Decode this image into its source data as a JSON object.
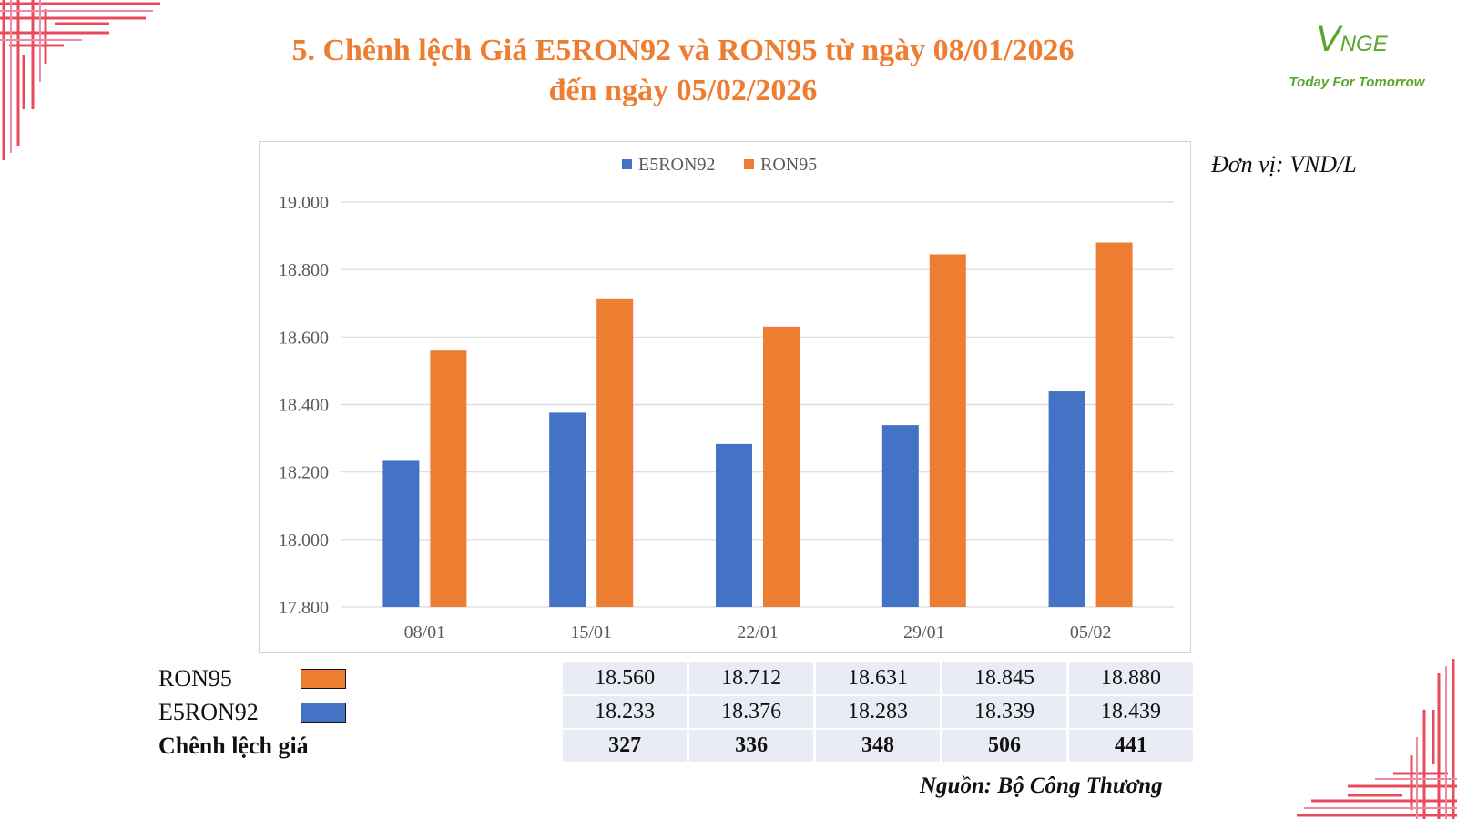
{
  "title_line1": "5. Chênh lệch Giá E5RON92 và RON95 từ ngày 08/01/2026",
  "title_line2": "đến ngày 05/02/2026",
  "logo": {
    "mark_v": "V",
    "mark_rest": "NGE",
    "tagline": "Today For Tomorrow"
  },
  "unit_label": "Đơn vị: VND/L",
  "source_label": "Nguồn: Bộ Công Thương",
  "colors": {
    "e5ron92": "#4472c4",
    "ron95": "#ed7d31",
    "title": "#ed7d31",
    "accent_frame": "#e84b5c",
    "logo": "#5aa62c"
  },
  "chart_data": {
    "type": "bar",
    "categories": [
      "08/01",
      "15/01",
      "22/01",
      "29/01",
      "05/02"
    ],
    "series": [
      {
        "name": "E5RON92",
        "values": [
          18233,
          18376,
          18283,
          18339,
          18439
        ]
      },
      {
        "name": "RON95",
        "values": [
          18560,
          18712,
          18631,
          18845,
          18880
        ]
      }
    ],
    "ylim": [
      17800,
      19000
    ],
    "yticks": [
      "17.800",
      "18.000",
      "18.200",
      "18.400",
      "18.600",
      "18.800",
      "19.000"
    ],
    "grid": true,
    "legend": "top-center"
  },
  "table": {
    "rows": [
      {
        "label": "RON95",
        "swatch": "ron95",
        "values": [
          "18.560",
          "18.712",
          "18.631",
          "18.845",
          "18.880"
        ]
      },
      {
        "label": "E5RON92",
        "swatch": "e5ron92",
        "values": [
          "18.233",
          "18.376",
          "18.283",
          "18.339",
          "18.439"
        ]
      },
      {
        "label": "Chênh lệch giá",
        "swatch": "",
        "values": [
          "327",
          "336",
          "348",
          "506",
          "441"
        ]
      }
    ]
  }
}
